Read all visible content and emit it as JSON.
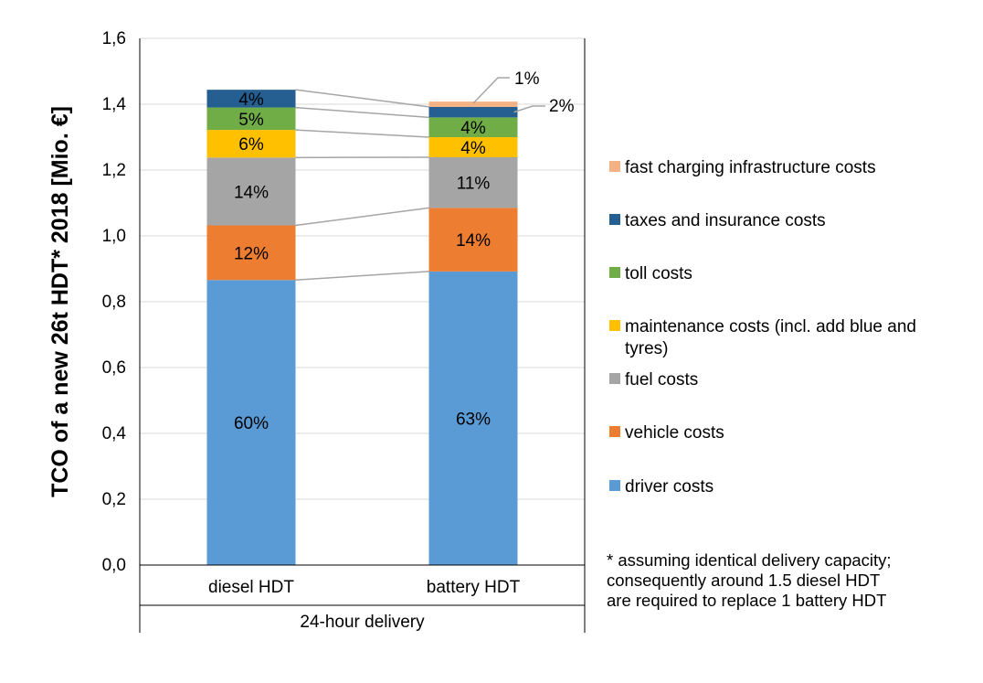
{
  "chart_data": {
    "type": "bar",
    "stacked": true,
    "ylabel": "TCO of a new 26t HDT* 2018 [Mio. €]",
    "xlabel": "24-hour delivery",
    "ylim": [
      0,
      1.6
    ],
    "yticks": [
      "0,0",
      "0,2",
      "0,4",
      "0,6",
      "0,8",
      "1,0",
      "1,2",
      "1,4",
      "1,6"
    ],
    "ytick_values": [
      0,
      0.2,
      0.4,
      0.6,
      0.8,
      1.0,
      1.2,
      1.4,
      1.6
    ],
    "grid": true,
    "categories": [
      "diesel HDT",
      "battery HDT"
    ],
    "series": [
      {
        "name": "driver costs",
        "color": "#5B9BD5",
        "values": [
          0.866,
          0.892
        ],
        "labels": [
          "60%",
          "63%"
        ]
      },
      {
        "name": "vehicle costs",
        "color": "#ED7D31",
        "values": [
          0.166,
          0.193
        ],
        "labels": [
          "12%",
          "14%"
        ]
      },
      {
        "name": "fuel costs",
        "color": "#A5A5A5",
        "values": [
          0.206,
          0.154
        ],
        "labels": [
          "14%",
          "11%"
        ]
      },
      {
        "name": "maintenance costs (incl. add blue and tyres)",
        "color": "#FFC000",
        "values": [
          0.084,
          0.061
        ],
        "labels": [
          "6%",
          "4%"
        ]
      },
      {
        "name": "toll costs",
        "color": "#70AD47",
        "values": [
          0.068,
          0.06
        ],
        "labels": [
          "5%",
          "4%"
        ]
      },
      {
        "name": "taxes and insurance costs",
        "color": "#255E91",
        "values": [
          0.054,
          0.032
        ],
        "labels": [
          "4%",
          "2%"
        ]
      },
      {
        "name": "fast charging infrastructure costs",
        "color": "#F4B183",
        "values": [
          0.0,
          0.016
        ],
        "labels": [
          "",
          "1%"
        ]
      }
    ],
    "legend_position": "right",
    "footnote": [
      "* assuming identical delivery capacity;",
      "consequently around 1.5 diesel HDT",
      "are required to replace 1 battery HDT"
    ]
  }
}
